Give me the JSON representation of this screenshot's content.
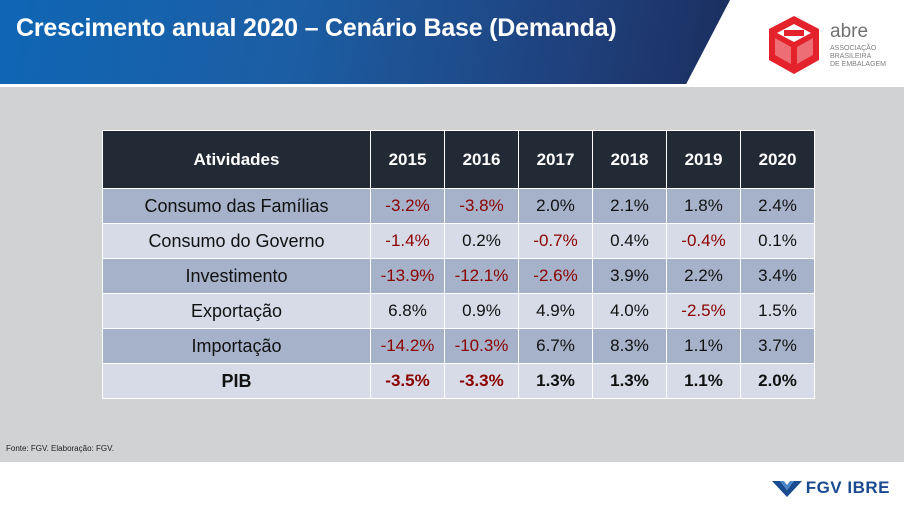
{
  "slide": {
    "title": "Crescimento anual 2020 – Cenário Base (Demanda)",
    "source": "Fonte: FGV. Elaboração: FGV."
  },
  "logos": {
    "abre": {
      "name": "abre",
      "subtitle_lines": [
        "ASSOCIAÇÃO",
        "BRASILEIRA",
        "DE EMBALAGEM"
      ]
    },
    "fgv": {
      "text": "FGV IBRE"
    }
  },
  "colors": {
    "header_blue": "#1c5ea4",
    "table_header": "#222a35",
    "row_dark": "#a6b2c9",
    "row_light": "#d6dbe7",
    "negative": "#8b0000",
    "abre_red": "#e3222b",
    "fgv_blue": "#1a4a8f"
  },
  "table": {
    "header_activity": "Atividades",
    "years": [
      "2015",
      "2016",
      "2017",
      "2018",
      "2019",
      "2020"
    ],
    "rows": [
      {
        "activity": "Consumo das Famílias",
        "values": [
          "-3.2%",
          "-3.8%",
          "2.0%",
          "2.1%",
          "1.8%",
          "2.4%"
        ],
        "negative": [
          true,
          true,
          false,
          false,
          false,
          false
        ],
        "bold": false
      },
      {
        "activity": "Consumo do Governo",
        "values": [
          "-1.4%",
          "0.2%",
          "-0.7%",
          "0.4%",
          "-0.4%",
          "0.1%"
        ],
        "negative": [
          true,
          false,
          true,
          false,
          true,
          false
        ],
        "bold": false
      },
      {
        "activity": "Investimento",
        "values": [
          "-13.9%",
          "-12.1%",
          "-2.6%",
          "3.9%",
          "2.2%",
          "3.4%"
        ],
        "negative": [
          true,
          true,
          true,
          false,
          false,
          false
        ],
        "bold": false
      },
      {
        "activity": "Exportação",
        "values": [
          "6.8%",
          "0.9%",
          "4.9%",
          "4.0%",
          "-2.5%",
          "1.5%"
        ],
        "negative": [
          false,
          false,
          false,
          false,
          true,
          false
        ],
        "bold": false
      },
      {
        "activity": "Importação",
        "values": [
          "-14.2%",
          "-10.3%",
          "6.7%",
          "8.3%",
          "1.1%",
          "3.7%"
        ],
        "negative": [
          true,
          true,
          false,
          false,
          false,
          false
        ],
        "bold": false
      },
      {
        "activity": "PIB",
        "values": [
          "-3.5%",
          "-3.3%",
          "1.3%",
          "1.3%",
          "1.1%",
          "2.0%"
        ],
        "negative": [
          true,
          true,
          false,
          false,
          false,
          false
        ],
        "bold": true
      }
    ]
  }
}
